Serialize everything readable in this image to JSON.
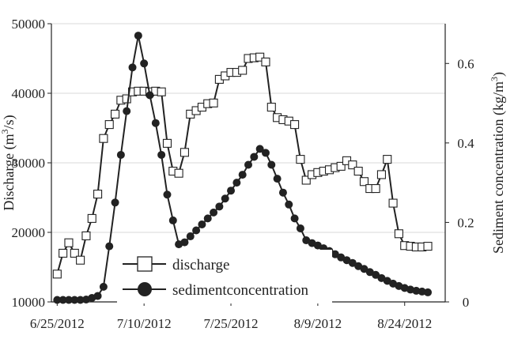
{
  "chart_data": {
    "type": "line",
    "x_axis": {
      "type": "date",
      "min": "2012-06-24",
      "max": "2012-08-31",
      "ticks": [
        {
          "date": "2012-06-25",
          "label": "6/25/2012"
        },
        {
          "date": "2012-07-10",
          "label": "7/10/2012"
        },
        {
          "date": "2012-07-25",
          "label": "7/25/2012"
        },
        {
          "date": "2012-08-09",
          "label": "8/9/2012"
        },
        {
          "date": "2012-08-24",
          "label": "8/24/2012"
        }
      ]
    },
    "y_left": {
      "label_main": "Discharge (m",
      "label_sup": "3",
      "label_end": "/s)",
      "min": 10000,
      "max": 50000,
      "ticks": [
        10000,
        20000,
        30000,
        40000,
        50000
      ]
    },
    "y_right": {
      "label_main": "Sediment concentration (kg/m",
      "label_sup": "3",
      "label_end": ")",
      "min": 0,
      "max": 0.7,
      "ticks": [
        0,
        0.2,
        0.4,
        0.6
      ]
    },
    "grid": "horizontal",
    "legend_position": "bottom-center",
    "series": [
      {
        "name": "discharge",
        "axis": "left",
        "marker": "open-square",
        "color": "#222222",
        "points": [
          [
            "2012-06-25",
            14000
          ],
          [
            "2012-06-26",
            17000
          ],
          [
            "2012-06-27",
            18500
          ],
          [
            "2012-06-28",
            17000
          ],
          [
            "2012-06-29",
            16000
          ],
          [
            "2012-06-30",
            19500
          ],
          [
            "2012-07-01",
            22000
          ],
          [
            "2012-07-02",
            25500
          ],
          [
            "2012-07-03",
            33500
          ],
          [
            "2012-07-04",
            35500
          ],
          [
            "2012-07-05",
            37000
          ],
          [
            "2012-07-06",
            39000
          ],
          [
            "2012-07-07",
            39200
          ],
          [
            "2012-07-08",
            40200
          ],
          [
            "2012-07-09",
            40300
          ],
          [
            "2012-07-10",
            40300
          ],
          [
            "2012-07-11",
            40200
          ],
          [
            "2012-07-12",
            40300
          ],
          [
            "2012-07-13",
            40200
          ],
          [
            "2012-07-14",
            32800
          ],
          [
            "2012-07-15",
            28800
          ],
          [
            "2012-07-16",
            28500
          ],
          [
            "2012-07-17",
            31500
          ],
          [
            "2012-07-18",
            37000
          ],
          [
            "2012-07-19",
            37500
          ],
          [
            "2012-07-20",
            38000
          ],
          [
            "2012-07-21",
            38500
          ],
          [
            "2012-07-22",
            38600
          ],
          [
            "2012-07-23",
            42000
          ],
          [
            "2012-07-24",
            42500
          ],
          [
            "2012-07-25",
            43000
          ],
          [
            "2012-07-26",
            43000
          ],
          [
            "2012-07-27",
            43300
          ],
          [
            "2012-07-28",
            45000
          ],
          [
            "2012-07-29",
            45100
          ],
          [
            "2012-07-30",
            45200
          ],
          [
            "2012-07-31",
            44500
          ],
          [
            "2012-08-01",
            38000
          ],
          [
            "2012-08-02",
            36500
          ],
          [
            "2012-08-03",
            36200
          ],
          [
            "2012-08-04",
            36000
          ],
          [
            "2012-08-05",
            35500
          ],
          [
            "2012-08-06",
            30500
          ],
          [
            "2012-08-07",
            27500
          ],
          [
            "2012-08-08",
            28300
          ],
          [
            "2012-08-09",
            28600
          ],
          [
            "2012-08-10",
            28800
          ],
          [
            "2012-08-11",
            29000
          ],
          [
            "2012-08-12",
            29300
          ],
          [
            "2012-08-13",
            29500
          ],
          [
            "2012-08-14",
            30300
          ],
          [
            "2012-08-15",
            29700
          ],
          [
            "2012-08-16",
            28800
          ],
          [
            "2012-08-17",
            27300
          ],
          [
            "2012-08-18",
            26300
          ],
          [
            "2012-08-19",
            26300
          ],
          [
            "2012-08-20",
            28300
          ],
          [
            "2012-08-21",
            30500
          ],
          [
            "2012-08-22",
            24200
          ],
          [
            "2012-08-23",
            19800
          ],
          [
            "2012-08-24",
            18100
          ],
          [
            "2012-08-25",
            18000
          ],
          [
            "2012-08-26",
            17900
          ],
          [
            "2012-08-27",
            17900
          ],
          [
            "2012-08-28",
            18000
          ]
        ]
      },
      {
        "name": "sedimentconcentration",
        "axis": "right",
        "marker": "filled-circle",
        "color": "#222222",
        "points": [
          [
            "2012-06-25",
            0.005
          ],
          [
            "2012-06-26",
            0.005
          ],
          [
            "2012-06-27",
            0.005
          ],
          [
            "2012-06-28",
            0.005
          ],
          [
            "2012-06-29",
            0.005
          ],
          [
            "2012-06-30",
            0.006
          ],
          [
            "2012-07-01",
            0.01
          ],
          [
            "2012-07-02",
            0.015
          ],
          [
            "2012-07-03",
            0.038
          ],
          [
            "2012-07-04",
            0.14
          ],
          [
            "2012-07-05",
            0.25
          ],
          [
            "2012-07-06",
            0.37
          ],
          [
            "2012-07-07",
            0.48
          ],
          [
            "2012-07-08",
            0.59
          ],
          [
            "2012-07-09",
            0.67
          ],
          [
            "2012-07-10",
            0.6
          ],
          [
            "2012-07-11",
            0.52
          ],
          [
            "2012-07-12",
            0.45
          ],
          [
            "2012-07-13",
            0.37
          ],
          [
            "2012-07-14",
            0.27
          ],
          [
            "2012-07-15",
            0.205
          ],
          [
            "2012-07-16",
            0.145
          ],
          [
            "2012-07-17",
            0.15
          ],
          [
            "2012-07-18",
            0.165
          ],
          [
            "2012-07-19",
            0.18
          ],
          [
            "2012-07-20",
            0.195
          ],
          [
            "2012-07-21",
            0.21
          ],
          [
            "2012-07-22",
            0.225
          ],
          [
            "2012-07-23",
            0.24
          ],
          [
            "2012-07-24",
            0.26
          ],
          [
            "2012-07-25",
            0.28
          ],
          [
            "2012-07-26",
            0.3
          ],
          [
            "2012-07-27",
            0.32
          ],
          [
            "2012-07-28",
            0.345
          ],
          [
            "2012-07-29",
            0.365
          ],
          [
            "2012-07-30",
            0.385
          ],
          [
            "2012-07-31",
            0.375
          ],
          [
            "2012-08-01",
            0.345
          ],
          [
            "2012-08-02",
            0.31
          ],
          [
            "2012-08-03",
            0.275
          ],
          [
            "2012-08-04",
            0.245
          ],
          [
            "2012-08-05",
            0.21
          ],
          [
            "2012-08-06",
            0.185
          ],
          [
            "2012-08-07",
            0.155
          ],
          [
            "2012-08-08",
            0.148
          ],
          [
            "2012-08-09",
            0.142
          ],
          [
            "2012-08-10",
            0.135
          ],
          [
            "2012-08-11",
            0.128
          ],
          [
            "2012-08-12",
            0.12
          ],
          [
            "2012-08-13",
            0.112
          ],
          [
            "2012-08-14",
            0.105
          ],
          [
            "2012-08-15",
            0.098
          ],
          [
            "2012-08-16",
            0.09
          ],
          [
            "2012-08-17",
            0.083
          ],
          [
            "2012-08-18",
            0.075
          ],
          [
            "2012-08-19",
            0.068
          ],
          [
            "2012-08-20",
            0.06
          ],
          [
            "2012-08-21",
            0.053
          ],
          [
            "2012-08-22",
            0.046
          ],
          [
            "2012-08-23",
            0.04
          ],
          [
            "2012-08-24",
            0.035
          ],
          [
            "2012-08-25",
            0.031
          ],
          [
            "2012-08-26",
            0.028
          ],
          [
            "2012-08-27",
            0.026
          ],
          [
            "2012-08-28",
            0.024
          ]
        ]
      }
    ]
  }
}
